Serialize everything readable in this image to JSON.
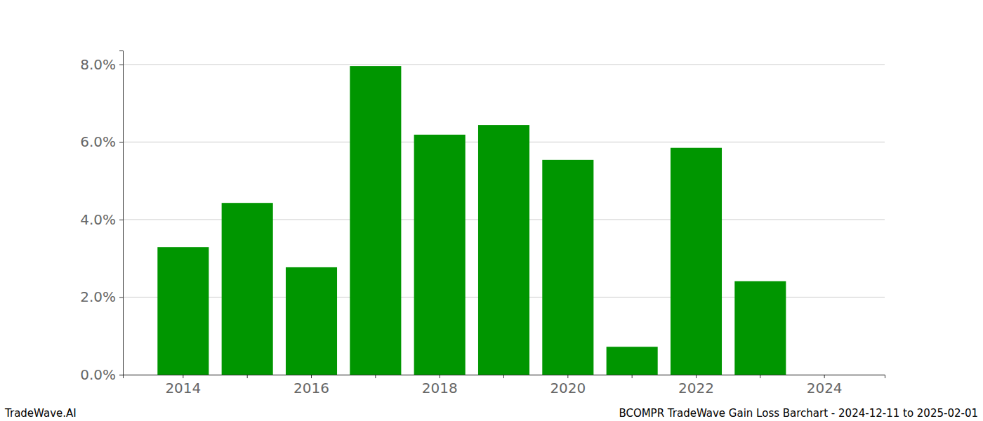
{
  "chart_data": {
    "type": "bar",
    "title": "BCOMPR TradeWave Gain Loss Barchart - 2024-12-11 to 2025-02-01",
    "annotations": [
      "TradeWave.AI"
    ],
    "categories": [
      "2014",
      null,
      "2016",
      null,
      "2018",
      null,
      "2020",
      null,
      "2022",
      null,
      "2024"
    ],
    "values": [
      3.29,
      4.43,
      2.77,
      7.96,
      6.19,
      6.44,
      5.54,
      0.72,
      5.85,
      2.41,
      0
    ],
    "color": "#009600",
    "ylim": [
      0,
      8.36
    ],
    "yticks": [
      {
        "value": 0,
        "label": "0.0%"
      },
      {
        "value": 2,
        "label": "2.0%"
      },
      {
        "value": 4,
        "label": "4.0%"
      },
      {
        "value": 6,
        "label": "6.0%"
      },
      {
        "value": 8,
        "label": "8.0%"
      }
    ],
    "grid": true
  }
}
